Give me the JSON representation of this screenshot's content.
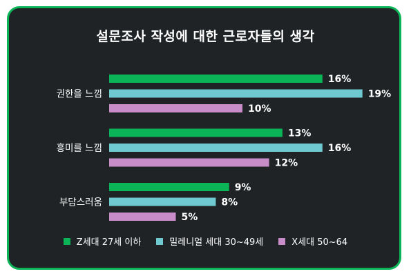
{
  "chart_data": {
    "type": "bar",
    "orientation": "horizontal",
    "title": "설문조사 작성에 대한 근로자들의 생각",
    "categories": [
      "권한을 느낌",
      "흥미를 느낌",
      "부담스러움"
    ],
    "series": [
      {
        "name": "Z세대 27세 이하",
        "values": [
          16,
          13,
          9
        ],
        "color": "#0cb458"
      },
      {
        "name": "밀레니얼 세대 30~49세",
        "values": [
          19,
          16,
          8
        ],
        "color": "#6ec9d0"
      },
      {
        "name": "X세대 50~64",
        "values": [
          10,
          12,
          5
        ],
        "color": "#c88cc8"
      }
    ],
    "value_suffix": "%",
    "legend_position": "bottom",
    "grid": false
  }
}
